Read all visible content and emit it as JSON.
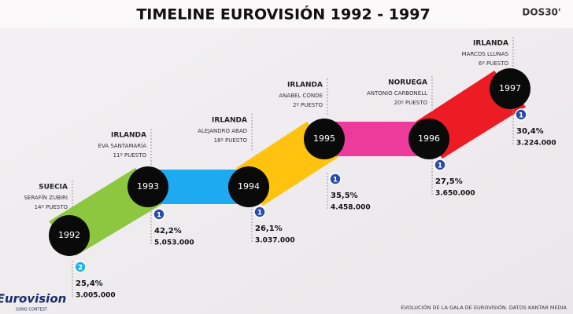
{
  "header": {
    "title": "TIMELINE EUROVISIÓN 1992 - 1997",
    "brand": "DOS30'"
  },
  "nodes": [
    {
      "year": "1992",
      "country": "SUECIA",
      "singer": "SERAFÍN ZUBIRI",
      "position": "14º PUESTO",
      "rank": "2",
      "share": "25,4%",
      "viewers": "3.005.000"
    },
    {
      "year": "1993",
      "country": "IRLANDA",
      "singer": "EVA SANTAMARÍA",
      "position": "11º PUESTO",
      "rank": "1",
      "share": "42,2%",
      "viewers": "5.053.000"
    },
    {
      "year": "1994",
      "country": "IRLANDA",
      "singer": "ALEJANDRO ABAD",
      "position": "18º PUESTO",
      "rank": "1",
      "share": "26,1%",
      "viewers": "3.037.000"
    },
    {
      "year": "1995",
      "country": "IRLANDA",
      "singer": "ANABEL CONDE",
      "position": "2º PUESTO",
      "rank": "1",
      "share": "35,5%",
      "viewers": "4.458.000"
    },
    {
      "year": "1996",
      "country": "NORUEGA",
      "singer": "ANTONIO CARBONELL",
      "position": "20º PUESTO",
      "rank": "1",
      "share": "27,5%",
      "viewers": "3.650.000"
    },
    {
      "year": "1997",
      "country": "IRLANDA",
      "singer": "MARCOS LLUNAS",
      "position": "6º PUESTO",
      "rank": "1",
      "share": "30,4%",
      "viewers": "3.224.000"
    }
  ],
  "footer": {
    "logo": "Eurovision",
    "logo_sub": "SONG CONTEST",
    "source": "EVOLUCIÓN DE LA GALA DE EUROVISIÓN. DATOS KANTAR MEDIA"
  }
}
